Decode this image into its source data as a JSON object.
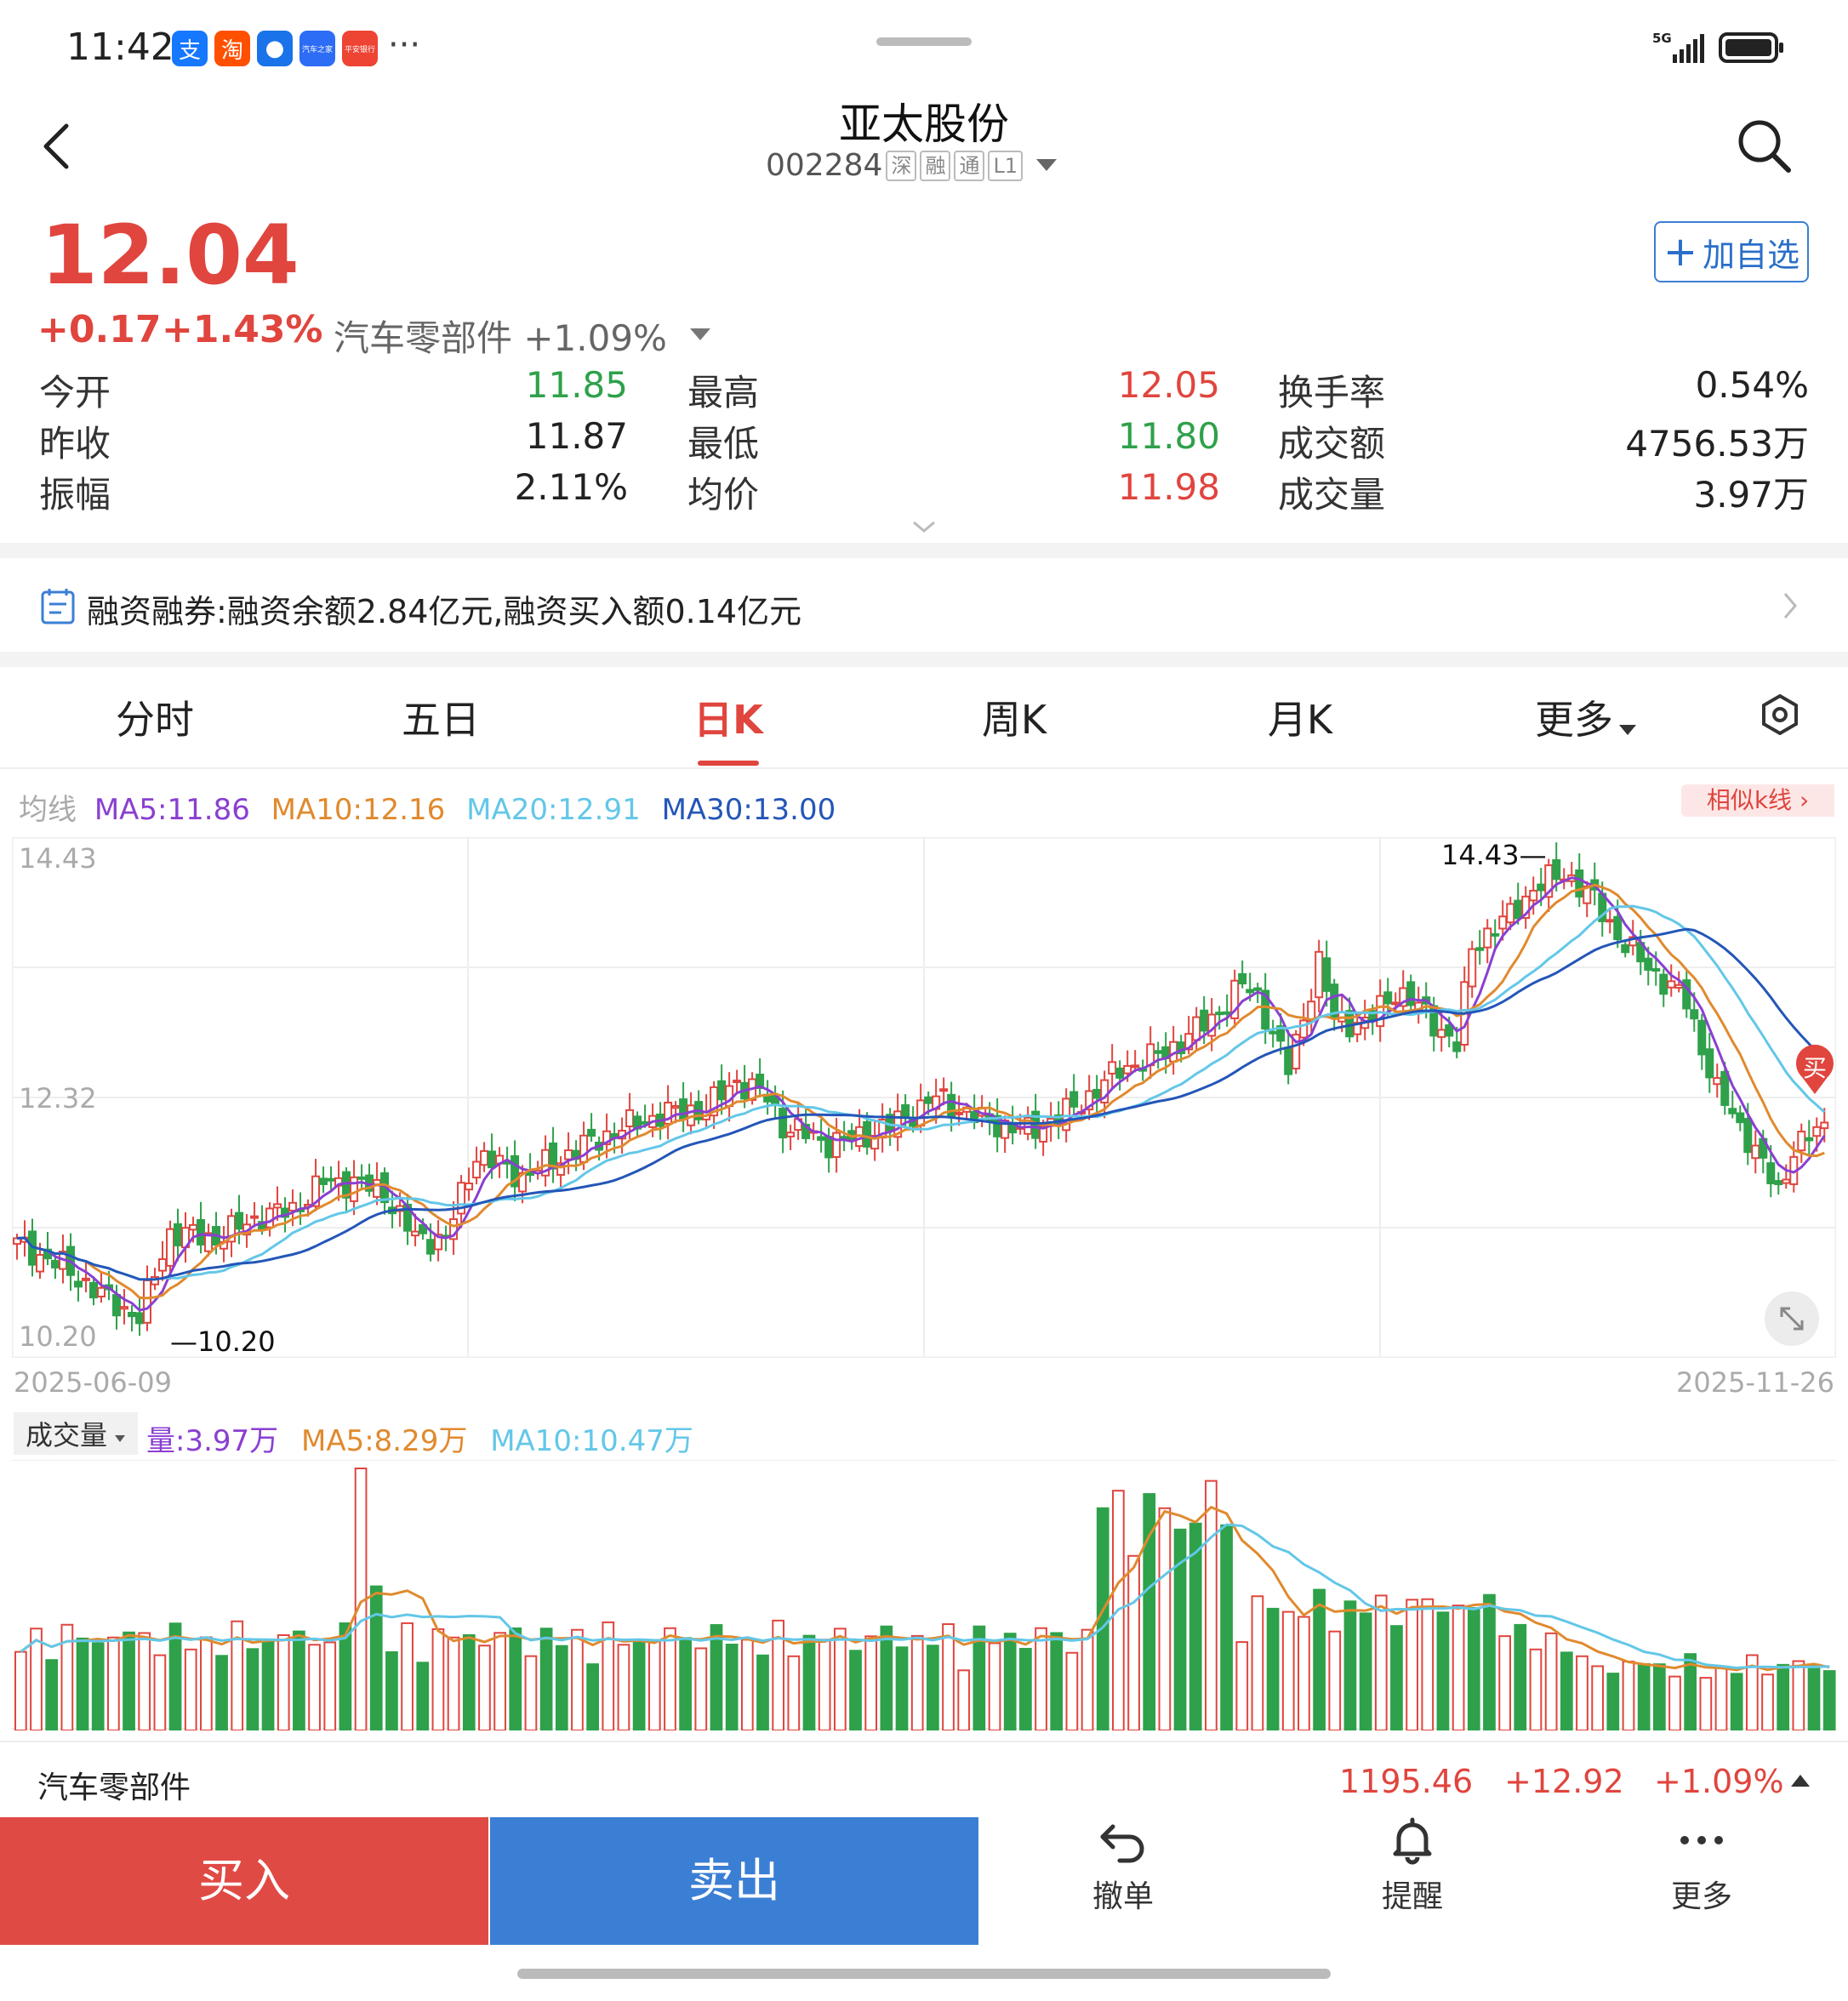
{
  "status_bar": {
    "time": "11:42",
    "apps": [
      {
        "name": "alipay-icon",
        "label": "支",
        "color": "#1677ff"
      },
      {
        "name": "taobao-icon",
        "label": "淘",
        "color": "#ff5000"
      },
      {
        "name": "bird-app-icon",
        "label": "●",
        "color": "#1a73e8"
      },
      {
        "name": "autohome-icon",
        "label": "汽车之家",
        "color": "#2d6cf5"
      },
      {
        "name": "pingan-bank-icon",
        "label": "平安银行",
        "color": "#ee4433"
      }
    ],
    "more": "···",
    "network": "5G"
  },
  "header": {
    "title": "亚太股份",
    "code": "002284",
    "tags": [
      "深",
      "融",
      "通",
      "L1"
    ]
  },
  "price": {
    "current": "12.04",
    "change": "+0.17",
    "change_pct": "+1.43%",
    "sector": "汽车零部件 +1.09%",
    "add_watchlist": "加自选"
  },
  "quote": [
    {
      "label": "今开",
      "value": "11.85",
      "color": "green"
    },
    {
      "label": "最高",
      "value": "12.05",
      "color": "red"
    },
    {
      "label": "换手率",
      "value": "0.54%",
      "color": "black"
    },
    {
      "label": "昨收",
      "value": "11.87",
      "color": "black"
    },
    {
      "label": "最低",
      "value": "11.80",
      "color": "green"
    },
    {
      "label": "成交额",
      "value": "4756.53万",
      "color": "black"
    },
    {
      "label": "振幅",
      "value": "2.11%",
      "color": "black"
    },
    {
      "label": "均价",
      "value": "11.98",
      "color": "red"
    },
    {
      "label": "成交量",
      "value": "3.97万",
      "color": "black"
    }
  ],
  "margin_banner": "融资融券:融资余额2.84亿元,融资买入额0.14亿元",
  "tabs": [
    "分时",
    "五日",
    "日K",
    "周K",
    "月K",
    "更多"
  ],
  "active_tab": "日K",
  "ma_legend": {
    "label": "均线",
    "ma5": "MA5:11.86",
    "ma10": "MA10:12.16",
    "ma20": "MA20:12.91",
    "ma30": "MA30:13.00",
    "similar": "相似k线 ›"
  },
  "chart_axis": {
    "y_top": "14.43",
    "y_mid": "12.32",
    "y_bottom": "10.20",
    "max_label": "14.43",
    "min_label": "10.20",
    "date_start": "2025-06-09",
    "date_end": "2025-11-26",
    "buy_marker": "买"
  },
  "volume_legend": {
    "selector": "成交量",
    "vol": "量:3.97万",
    "ma5": "MA5:8.29万",
    "ma10": "MA10:10.47万"
  },
  "sector_bar": {
    "name": "汽车零部件",
    "index": "1195.46",
    "change": "+12.92",
    "change_pct": "+1.09%"
  },
  "bottom_bar": {
    "buy": "买入",
    "sell": "卖出",
    "cancel": "撤单",
    "alert": "提醒",
    "more": "更多"
  },
  "colors": {
    "up": "#e0453e",
    "down": "#2ea14a",
    "ma5": "#8a3fd1",
    "ma10": "#e08a2e",
    "ma20": "#63c7e8",
    "ma30": "#2456b8",
    "buy_bg": "#e04a44",
    "sell_bg": "#3b7fd4"
  },
  "chart_data": {
    "type": "candlestick",
    "x_range": [
      "2025-06-09",
      "2025-11-26"
    ],
    "ylim": [
      10.2,
      14.43
    ],
    "series_ma": [
      "MA5",
      "MA10",
      "MA20",
      "MA30"
    ],
    "summary": {
      "high": 14.43,
      "low": 10.2,
      "last_close": 12.04
    },
    "volume_ma": {
      "MA5": "8.29万",
      "MA10": "10.47万",
      "last_volume": "3.97万"
    }
  }
}
